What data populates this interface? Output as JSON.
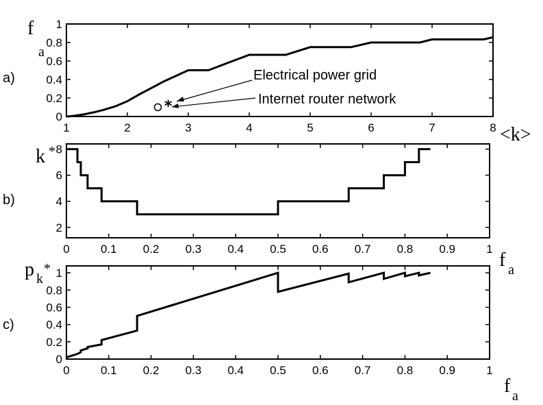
{
  "chart_data": [
    {
      "type": "line",
      "panel_tag": "a)",
      "xlabel": "<k>",
      "ylabel": "f",
      "ylabel_sub": "a",
      "xlim": [
        1,
        8
      ],
      "ylim": [
        0,
        1
      ],
      "xticks": [
        1,
        2,
        3,
        4,
        5,
        6,
        7,
        8
      ],
      "yticks": [
        0,
        0.2,
        0.4,
        0.6,
        0.8,
        1
      ],
      "xtick_labels": [
        "1",
        "2",
        "3",
        "4",
        "5",
        "6",
        "7",
        "8"
      ],
      "ytick_labels": [
        "0",
        "0.2",
        "0.4",
        "0.6",
        "0.8",
        "1"
      ],
      "series": [
        {
          "x": [
            1.0,
            1.05,
            1.15,
            1.3,
            1.45,
            1.6,
            1.8,
            2.0,
            2.2,
            2.4,
            2.6,
            2.8,
            3.0,
            3.33,
            3.67,
            4.0,
            4.6,
            5.0,
            5.67,
            6.0,
            6.8,
            7.0,
            7.85,
            8.0
          ],
          "y": [
            0.0,
            0.002,
            0.01,
            0.025,
            0.045,
            0.07,
            0.11,
            0.165,
            0.24,
            0.31,
            0.38,
            0.44,
            0.5,
            0.5,
            0.585,
            0.667,
            0.667,
            0.75,
            0.75,
            0.8,
            0.8,
            0.833,
            0.833,
            0.857
          ]
        }
      ],
      "markers": [
        {
          "label": "Electrical power grid",
          "x": 2.67,
          "y": 0.125,
          "symbol": "*"
        },
        {
          "label": "Internet router network",
          "x": 2.5,
          "y": 0.1,
          "symbol": "o"
        }
      ]
    },
    {
      "type": "line",
      "panel_tag": "b)",
      "xlabel": "f",
      "xlabel_sub": "a",
      "ylabel": "k",
      "ylabel_sup": "*",
      "xlim": [
        0,
        1
      ],
      "ylim": [
        1.2,
        8.4
      ],
      "xticks": [
        0,
        0.1,
        0.2,
        0.3,
        0.4,
        0.5,
        0.6,
        0.7,
        0.8,
        0.9,
        1
      ],
      "yticks": [
        2,
        4,
        6,
        8
      ],
      "xtick_labels": [
        "0",
        "0.1",
        "0.2",
        "0.3",
        "0.4",
        "0.5",
        "0.6",
        "0.7",
        "0.8",
        "0.9",
        "1"
      ],
      "ytick_labels": [
        "2",
        "4",
        "6",
        "8"
      ],
      "series": [
        {
          "x": [
            0,
            0.026,
            0.026,
            0.034,
            0.034,
            0.05,
            0.05,
            0.083,
            0.083,
            0.167,
            0.167,
            0.5,
            0.5,
            0.667,
            0.667,
            0.75,
            0.75,
            0.8,
            0.8,
            0.833,
            0.833,
            0.86
          ],
          "y": [
            8,
            8,
            7,
            7,
            6,
            6,
            5,
            5,
            4,
            4,
            3,
            3,
            4,
            4,
            5,
            5,
            6,
            6,
            7,
            7,
            8,
            8
          ]
        }
      ]
    },
    {
      "type": "line",
      "panel_tag": "c)",
      "xlabel": "f",
      "xlabel_sub": "a",
      "ylabel": "p",
      "ylabel_sub": "k",
      "ylabel_subsup": "*",
      "xlim": [
        0,
        1
      ],
      "ylim": [
        0,
        1.08
      ],
      "xticks": [
        0,
        0.1,
        0.2,
        0.3,
        0.4,
        0.5,
        0.6,
        0.7,
        0.8,
        0.9,
        1
      ],
      "yticks": [
        0,
        0.2,
        0.4,
        0.6,
        0.8,
        1
      ],
      "xtick_labels": [
        "0",
        "0.1",
        "0.2",
        "0.3",
        "0.4",
        "0.5",
        "0.6",
        "0.7",
        "0.8",
        "0.9",
        "1"
      ],
      "ytick_labels": [
        "0",
        "0.2",
        "0.4",
        "0.6",
        "0.8",
        "1"
      ],
      "series": [
        {
          "x": [
            0,
            0.026,
            0.034,
            0.034,
            0.05,
            0.05,
            0.083,
            0.083,
            0.167,
            0.167,
            0.5,
            0.5,
            0.667,
            0.667,
            0.75,
            0.75,
            0.8,
            0.8,
            0.833,
            0.833,
            0.86
          ],
          "y": [
            0.02,
            0.06,
            0.08,
            0.1,
            0.125,
            0.14,
            0.17,
            0.22,
            0.33,
            0.5,
            1.0,
            0.78,
            0.99,
            0.89,
            1.0,
            0.93,
            1.0,
            0.96,
            1.0,
            0.97,
            1.0
          ]
        }
      ]
    }
  ]
}
